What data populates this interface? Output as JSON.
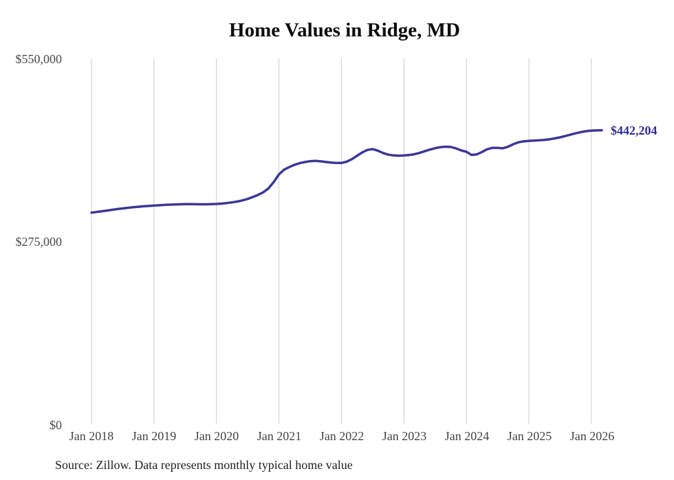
{
  "source_note": "Source: Zillow. Data represents monthly typical home value",
  "colors": {
    "line": "#3b3896",
    "end_label": "#302d90",
    "gridline": "#cccccc"
  },
  "chart_data": {
    "type": "line",
    "title": "Home Values in Ridge, MD",
    "series_name": "Typical home value (monthly)",
    "frequency": "monthly",
    "start_month": "Jan 2018",
    "end_month": "Mar 2026",
    "latest_value": 442204,
    "end_label": "$442,204",
    "ylim": [
      0,
      550000
    ],
    "y_tick_labels": [
      "$550,000",
      "$275,000",
      "$0"
    ],
    "x_tick_labels": [
      "Jan 2018",
      "Jan 2019",
      "Jan 2020",
      "Jan 2021",
      "Jan 2022",
      "Jan 2023",
      "Jan 2024",
      "Jan 2025",
      "Jan 2026"
    ],
    "grid": "vertical-only",
    "legend": "none",
    "values": [
      318600,
      319600,
      320700,
      321800,
      322900,
      324000,
      325000,
      325900,
      326700,
      327400,
      328100,
      328700,
      329200,
      329700,
      330200,
      330600,
      330900,
      331100,
      331300,
      331300,
      331200,
      331100,
      331100,
      331300,
      331600,
      332200,
      333000,
      334000,
      335300,
      337000,
      339200,
      342000,
      345300,
      349200,
      355000,
      364500,
      376000,
      383000,
      387000,
      390500,
      392800,
      394500,
      395800,
      396200,
      395600,
      394600,
      393700,
      393200,
      393100,
      395000,
      398800,
      403800,
      409000,
      412700,
      413900,
      411600,
      408100,
      405600,
      404500,
      404100,
      404400,
      405000,
      406200,
      408200,
      410700,
      413200,
      415300,
      416800,
      417500,
      417100,
      415000,
      412000,
      409900,
      405200,
      406000,
      409600,
      413700,
      415800,
      415700,
      415200,
      417400,
      421300,
      424100,
      425500,
      426300,
      426700,
      427100,
      427700,
      428700,
      430000,
      431600,
      433500,
      435600,
      437600,
      439400,
      440800,
      441600,
      442000,
      442204
    ]
  }
}
